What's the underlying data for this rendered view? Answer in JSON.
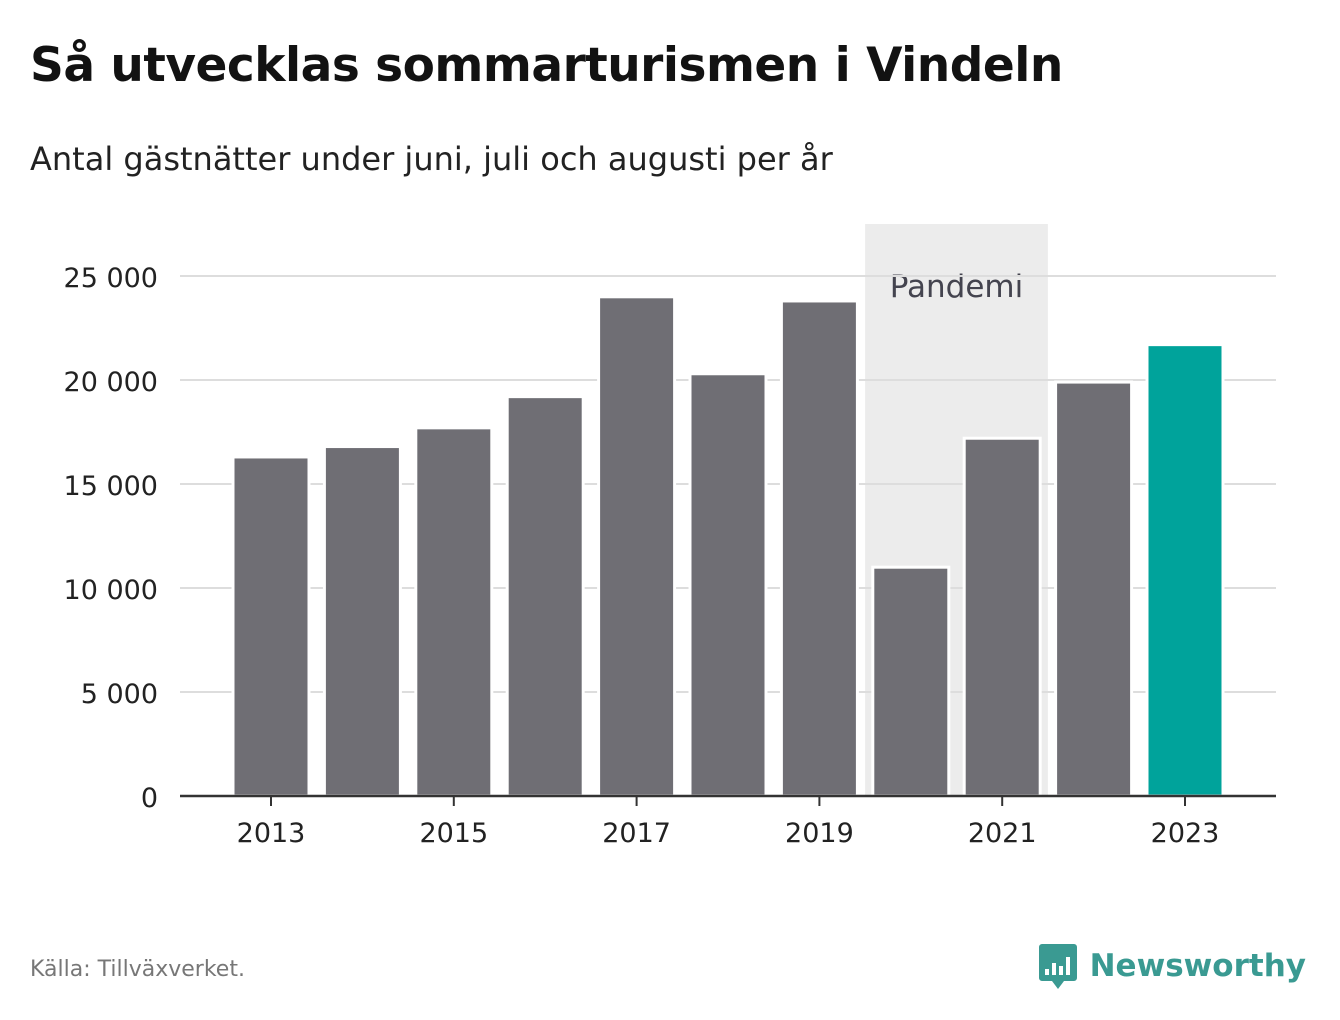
{
  "title": "Så utvecklas sommarturismen i Vindeln",
  "subtitle": "Antal gästnätter under juni, juli och augusti per år",
  "source": "Källa: Tillväxverket.",
  "brand": {
    "name": "Newsworthy",
    "icon": "newsworthy-chart-bubble-icon",
    "color": "#3a9a92"
  },
  "colors": {
    "bar": "#6f6e74",
    "highlight": "#00a39b",
    "shade": "#ececec",
    "grid": "#dddddd",
    "axis": "#333333"
  },
  "chart_data": {
    "type": "bar",
    "categories": [
      2013,
      2014,
      2015,
      2016,
      2017,
      2018,
      2019,
      2020,
      2021,
      2022,
      2023
    ],
    "values": [
      16300,
      16800,
      17700,
      19200,
      24000,
      20300,
      23800,
      11000,
      17200,
      19900,
      21700
    ],
    "highlight_category": 2023,
    "ylim": [
      0,
      27500
    ],
    "yticks": [
      0,
      5000,
      10000,
      15000,
      20000,
      25000
    ],
    "ytick_labels": [
      "0",
      "5 000",
      "10 000",
      "15 000",
      "20 000",
      "25 000"
    ],
    "xticks": [
      2013,
      2015,
      2017,
      2019,
      2021,
      2023
    ],
    "xtick_labels": [
      "2013",
      "2015",
      "2017",
      "2019",
      "2021",
      "2023"
    ],
    "grid": true,
    "annotation": {
      "label": "Pandemi",
      "from": 2020,
      "to": 2021
    },
    "xlabel": "",
    "ylabel": ""
  }
}
